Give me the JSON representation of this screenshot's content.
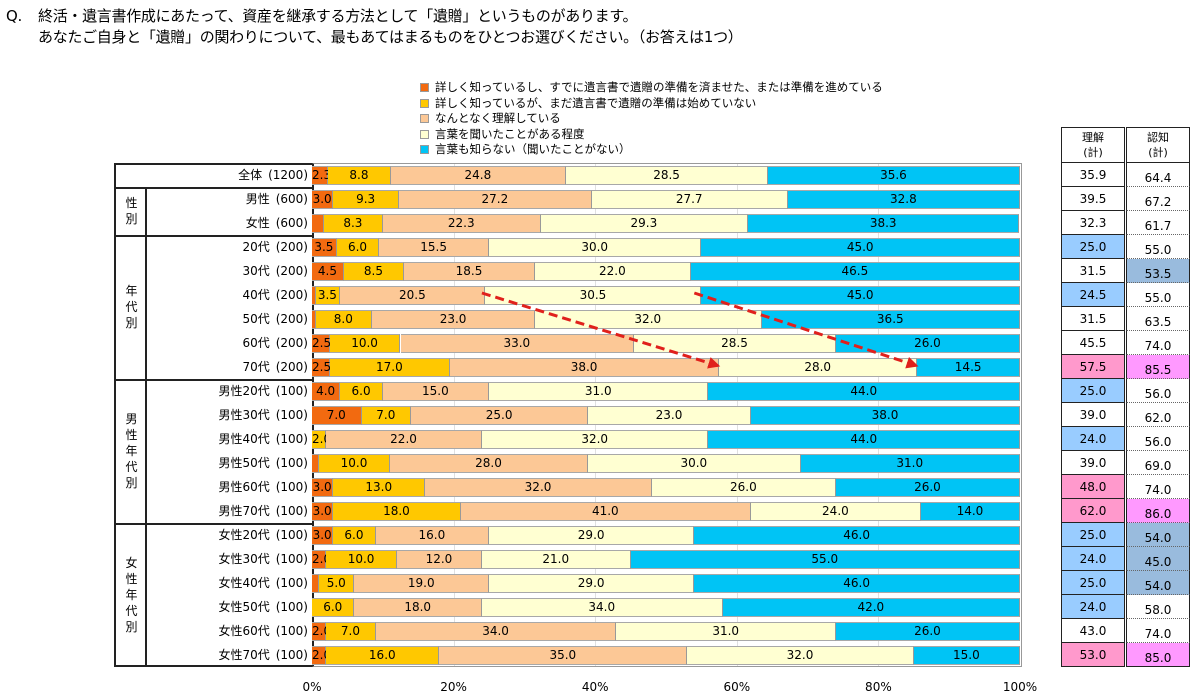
{
  "question": {
    "prefix": "Q.",
    "line1": "終活・遺言書作成にあたって、資産を継承する方法として「遺贈」というものがあります。",
    "line2": "あなたご自身と「遺贈」の関わりについて、最もあてはまるものをひとつお選びください。（お答えは1つ）"
  },
  "chart_data": {
    "type": "bar",
    "orientation": "horizontal-stacked-100",
    "title": "",
    "xlabel": "",
    "ylabel": "",
    "xlim": [
      0,
      100
    ],
    "x_ticks": [
      "0%",
      "20%",
      "40%",
      "60%",
      "80%",
      "100%"
    ],
    "grid": true,
    "legend_position": "top",
    "series": [
      {
        "name": "詳しく知っているし、すでに遺言書で遺贈の準備を済ませた、または準備を進めている",
        "color": "#f26a10"
      },
      {
        "name": "詳しく知っているが、まだ遺言書で遺贈の準備は始めていない",
        "color": "#ffc800"
      },
      {
        "name": "なんとなく理解している",
        "color": "#fcc896"
      },
      {
        "name": "言葉を聞いたことがある程度",
        "color": "#ffffd2"
      },
      {
        "name": "言葉も知らない（聞いたことがない）",
        "color": "#00c4f5"
      }
    ],
    "groups": [
      {
        "label": "",
        "rows": [
          0
        ]
      },
      {
        "label": "性別",
        "rows": [
          1,
          2
        ]
      },
      {
        "label": "年代別",
        "rows": [
          3,
          4,
          5,
          6,
          7,
          8
        ]
      },
      {
        "label": "男性年代別",
        "rows": [
          9,
          10,
          11,
          12,
          13,
          14
        ]
      },
      {
        "label": "女性年代別",
        "rows": [
          15,
          16,
          17,
          18,
          19,
          20
        ]
      }
    ],
    "categories": [
      {
        "label": "全体",
        "n": "(1200)",
        "values": [
          2.3,
          8.8,
          24.8,
          28.5,
          35.6
        ],
        "labels": [
          "2.3",
          "8.8",
          "24.8",
          "28.5",
          "35.6"
        ]
      },
      {
        "label": "男性",
        "n": "(600)",
        "values": [
          3.0,
          9.3,
          27.2,
          27.7,
          32.8
        ],
        "labels": [
          "3.0",
          "9.3",
          "27.2",
          "27.7",
          "32.8"
        ]
      },
      {
        "label": "女性",
        "n": "(600)",
        "values": [
          1.7,
          8.3,
          22.3,
          29.3,
          38.3
        ],
        "labels": [
          "",
          "8.3",
          "22.3",
          "29.3",
          "38.3"
        ]
      },
      {
        "label": "20代",
        "n": "(200)",
        "values": [
          3.5,
          6.0,
          15.5,
          30.0,
          45.0
        ],
        "labels": [
          "3.5",
          "6.0",
          "15.5",
          "30.0",
          "45.0"
        ]
      },
      {
        "label": "30代",
        "n": "(200)",
        "values": [
          4.5,
          8.5,
          18.5,
          22.0,
          46.5
        ],
        "labels": [
          "4.5",
          "8.5",
          "18.5",
          "22.0",
          "46.5"
        ]
      },
      {
        "label": "40代",
        "n": "(200)",
        "values": [
          0.5,
          3.5,
          20.5,
          30.5,
          45.0
        ],
        "labels": [
          "",
          "3.5",
          "20.5",
          "30.5",
          "45.0"
        ]
      },
      {
        "label": "50代",
        "n": "(200)",
        "values": [
          0.5,
          8.0,
          23.0,
          32.0,
          36.5
        ],
        "labels": [
          "",
          "8.0",
          "23.0",
          "32.0",
          "36.5"
        ]
      },
      {
        "label": "60代",
        "n": "(200)",
        "values": [
          2.5,
          10.0,
          33.0,
          28.5,
          26.0
        ],
        "labels": [
          "2.5",
          "10.0",
          "33.0",
          "28.5",
          "26.0"
        ]
      },
      {
        "label": "70代",
        "n": "(200)",
        "values": [
          2.5,
          17.0,
          38.0,
          28.0,
          14.5
        ],
        "labels": [
          "2.5",
          "17.0",
          "38.0",
          "28.0",
          "14.5"
        ]
      },
      {
        "label": "男性20代",
        "n": "(100)",
        "values": [
          4.0,
          6.0,
          15.0,
          31.0,
          44.0
        ],
        "labels": [
          "4.0",
          "6.0",
          "15.0",
          "31.0",
          "44.0"
        ]
      },
      {
        "label": "男性30代",
        "n": "(100)",
        "values": [
          7.0,
          7.0,
          25.0,
          23.0,
          38.0
        ],
        "labels": [
          "7.0",
          "7.0",
          "25.0",
          "23.0",
          "38.0"
        ]
      },
      {
        "label": "男性40代",
        "n": "(100)",
        "values": [
          0.0,
          2.0,
          22.0,
          32.0,
          44.0
        ],
        "labels": [
          "",
          "2.0",
          "22.0",
          "32.0",
          "44.0"
        ]
      },
      {
        "label": "男性50代",
        "n": "(100)",
        "values": [
          1.0,
          10.0,
          28.0,
          30.0,
          31.0
        ],
        "labels": [
          "",
          "10.0",
          "28.0",
          "30.0",
          "31.0"
        ]
      },
      {
        "label": "男性60代",
        "n": "(100)",
        "values": [
          3.0,
          13.0,
          32.0,
          26.0,
          26.0
        ],
        "labels": [
          "3.0",
          "13.0",
          "32.0",
          "26.0",
          "26.0"
        ]
      },
      {
        "label": "男性70代",
        "n": "(100)",
        "values": [
          3.0,
          18.0,
          41.0,
          24.0,
          14.0
        ],
        "labels": [
          "3.0",
          "18.0",
          "41.0",
          "24.0",
          "14.0"
        ]
      },
      {
        "label": "女性20代",
        "n": "(100)",
        "values": [
          3.0,
          6.0,
          16.0,
          29.0,
          46.0
        ],
        "labels": [
          "3.0",
          "6.0",
          "16.0",
          "29.0",
          "46.0"
        ]
      },
      {
        "label": "女性30代",
        "n": "(100)",
        "values": [
          2.0,
          10.0,
          12.0,
          21.0,
          55.0
        ],
        "labels": [
          "2.0",
          "10.0",
          "12.0",
          "21.0",
          "55.0"
        ]
      },
      {
        "label": "女性40代",
        "n": "(100)",
        "values": [
          1.0,
          5.0,
          19.0,
          29.0,
          46.0
        ],
        "labels": [
          "",
          "5.0",
          "19.0",
          "29.0",
          "46.0"
        ]
      },
      {
        "label": "女性50代",
        "n": "(100)",
        "values": [
          0.0,
          6.0,
          18.0,
          34.0,
          42.0
        ],
        "labels": [
          "",
          "6.0",
          "18.0",
          "34.0",
          "42.0"
        ]
      },
      {
        "label": "女性60代",
        "n": "(100)",
        "values": [
          2.0,
          7.0,
          34.0,
          31.0,
          26.0
        ],
        "labels": [
          "2.0",
          "7.0",
          "34.0",
          "31.0",
          "26.0"
        ]
      },
      {
        "label": "女性70代",
        "n": "(100)",
        "values": [
          2.0,
          16.0,
          35.0,
          32.0,
          15.0
        ],
        "labels": [
          "2.0",
          "16.0",
          "35.0",
          "32.0",
          "15.0"
        ]
      }
    ],
    "annotations": [
      {
        "type": "dashed-arrow",
        "color": "#e0201c",
        "from": {
          "row": "40代",
          "x": 24
        },
        "to": {
          "row": "70代",
          "x": 57.5
        }
      },
      {
        "type": "dashed-arrow",
        "color": "#e0201c",
        "from": {
          "row": "40代",
          "x": 54
        },
        "to": {
          "row": "70代",
          "x": 85.5
        }
      }
    ],
    "side_table": {
      "headers": [
        {
          "line1": "理解",
          "line2": "(計)"
        },
        {
          "line1": "認知",
          "line2": "(計)"
        }
      ],
      "rows": [
        {
          "u": "35.9",
          "uh": "",
          "k": "64.4",
          "kh": ""
        },
        {
          "u": "39.5",
          "uh": "",
          "k": "67.2",
          "kh": ""
        },
        {
          "u": "32.3",
          "uh": "",
          "k": "61.7",
          "kh": ""
        },
        {
          "u": "25.0",
          "uh": "low",
          "k": "55.0",
          "kh": ""
        },
        {
          "u": "31.5",
          "uh": "",
          "k": "53.5",
          "kh": "low"
        },
        {
          "u": "24.5",
          "uh": "low",
          "k": "55.0",
          "kh": ""
        },
        {
          "u": "31.5",
          "uh": "",
          "k": "63.5",
          "kh": ""
        },
        {
          "u": "45.5",
          "uh": "",
          "k": "74.0",
          "kh": ""
        },
        {
          "u": "57.5",
          "uh": "high",
          "k": "85.5",
          "kh": "high"
        },
        {
          "u": "25.0",
          "uh": "low",
          "k": "56.0",
          "kh": ""
        },
        {
          "u": "39.0",
          "uh": "",
          "k": "62.0",
          "kh": ""
        },
        {
          "u": "24.0",
          "uh": "low",
          "k": "56.0",
          "kh": ""
        },
        {
          "u": "39.0",
          "uh": "",
          "k": "69.0",
          "kh": ""
        },
        {
          "u": "48.0",
          "uh": "high",
          "k": "74.0",
          "kh": ""
        },
        {
          "u": "62.0",
          "uh": "high",
          "k": "86.0",
          "kh": "high"
        },
        {
          "u": "25.0",
          "uh": "low",
          "k": "54.0",
          "kh": "low"
        },
        {
          "u": "24.0",
          "uh": "low",
          "k": "45.0",
          "kh": "low"
        },
        {
          "u": "25.0",
          "uh": "low",
          "k": "54.0",
          "kh": "low"
        },
        {
          "u": "24.0",
          "uh": "low",
          "k": "58.0",
          "kh": ""
        },
        {
          "u": "43.0",
          "uh": "",
          "k": "74.0",
          "kh": ""
        },
        {
          "u": "53.0",
          "uh": "high",
          "k": "85.0",
          "kh": "high"
        }
      ],
      "highlight_colors": {
        "u_low": "#99ccff",
        "u_high": "#ff99cc",
        "k_low": "#99bbdd",
        "k_high": "#ff99ff"
      }
    }
  }
}
